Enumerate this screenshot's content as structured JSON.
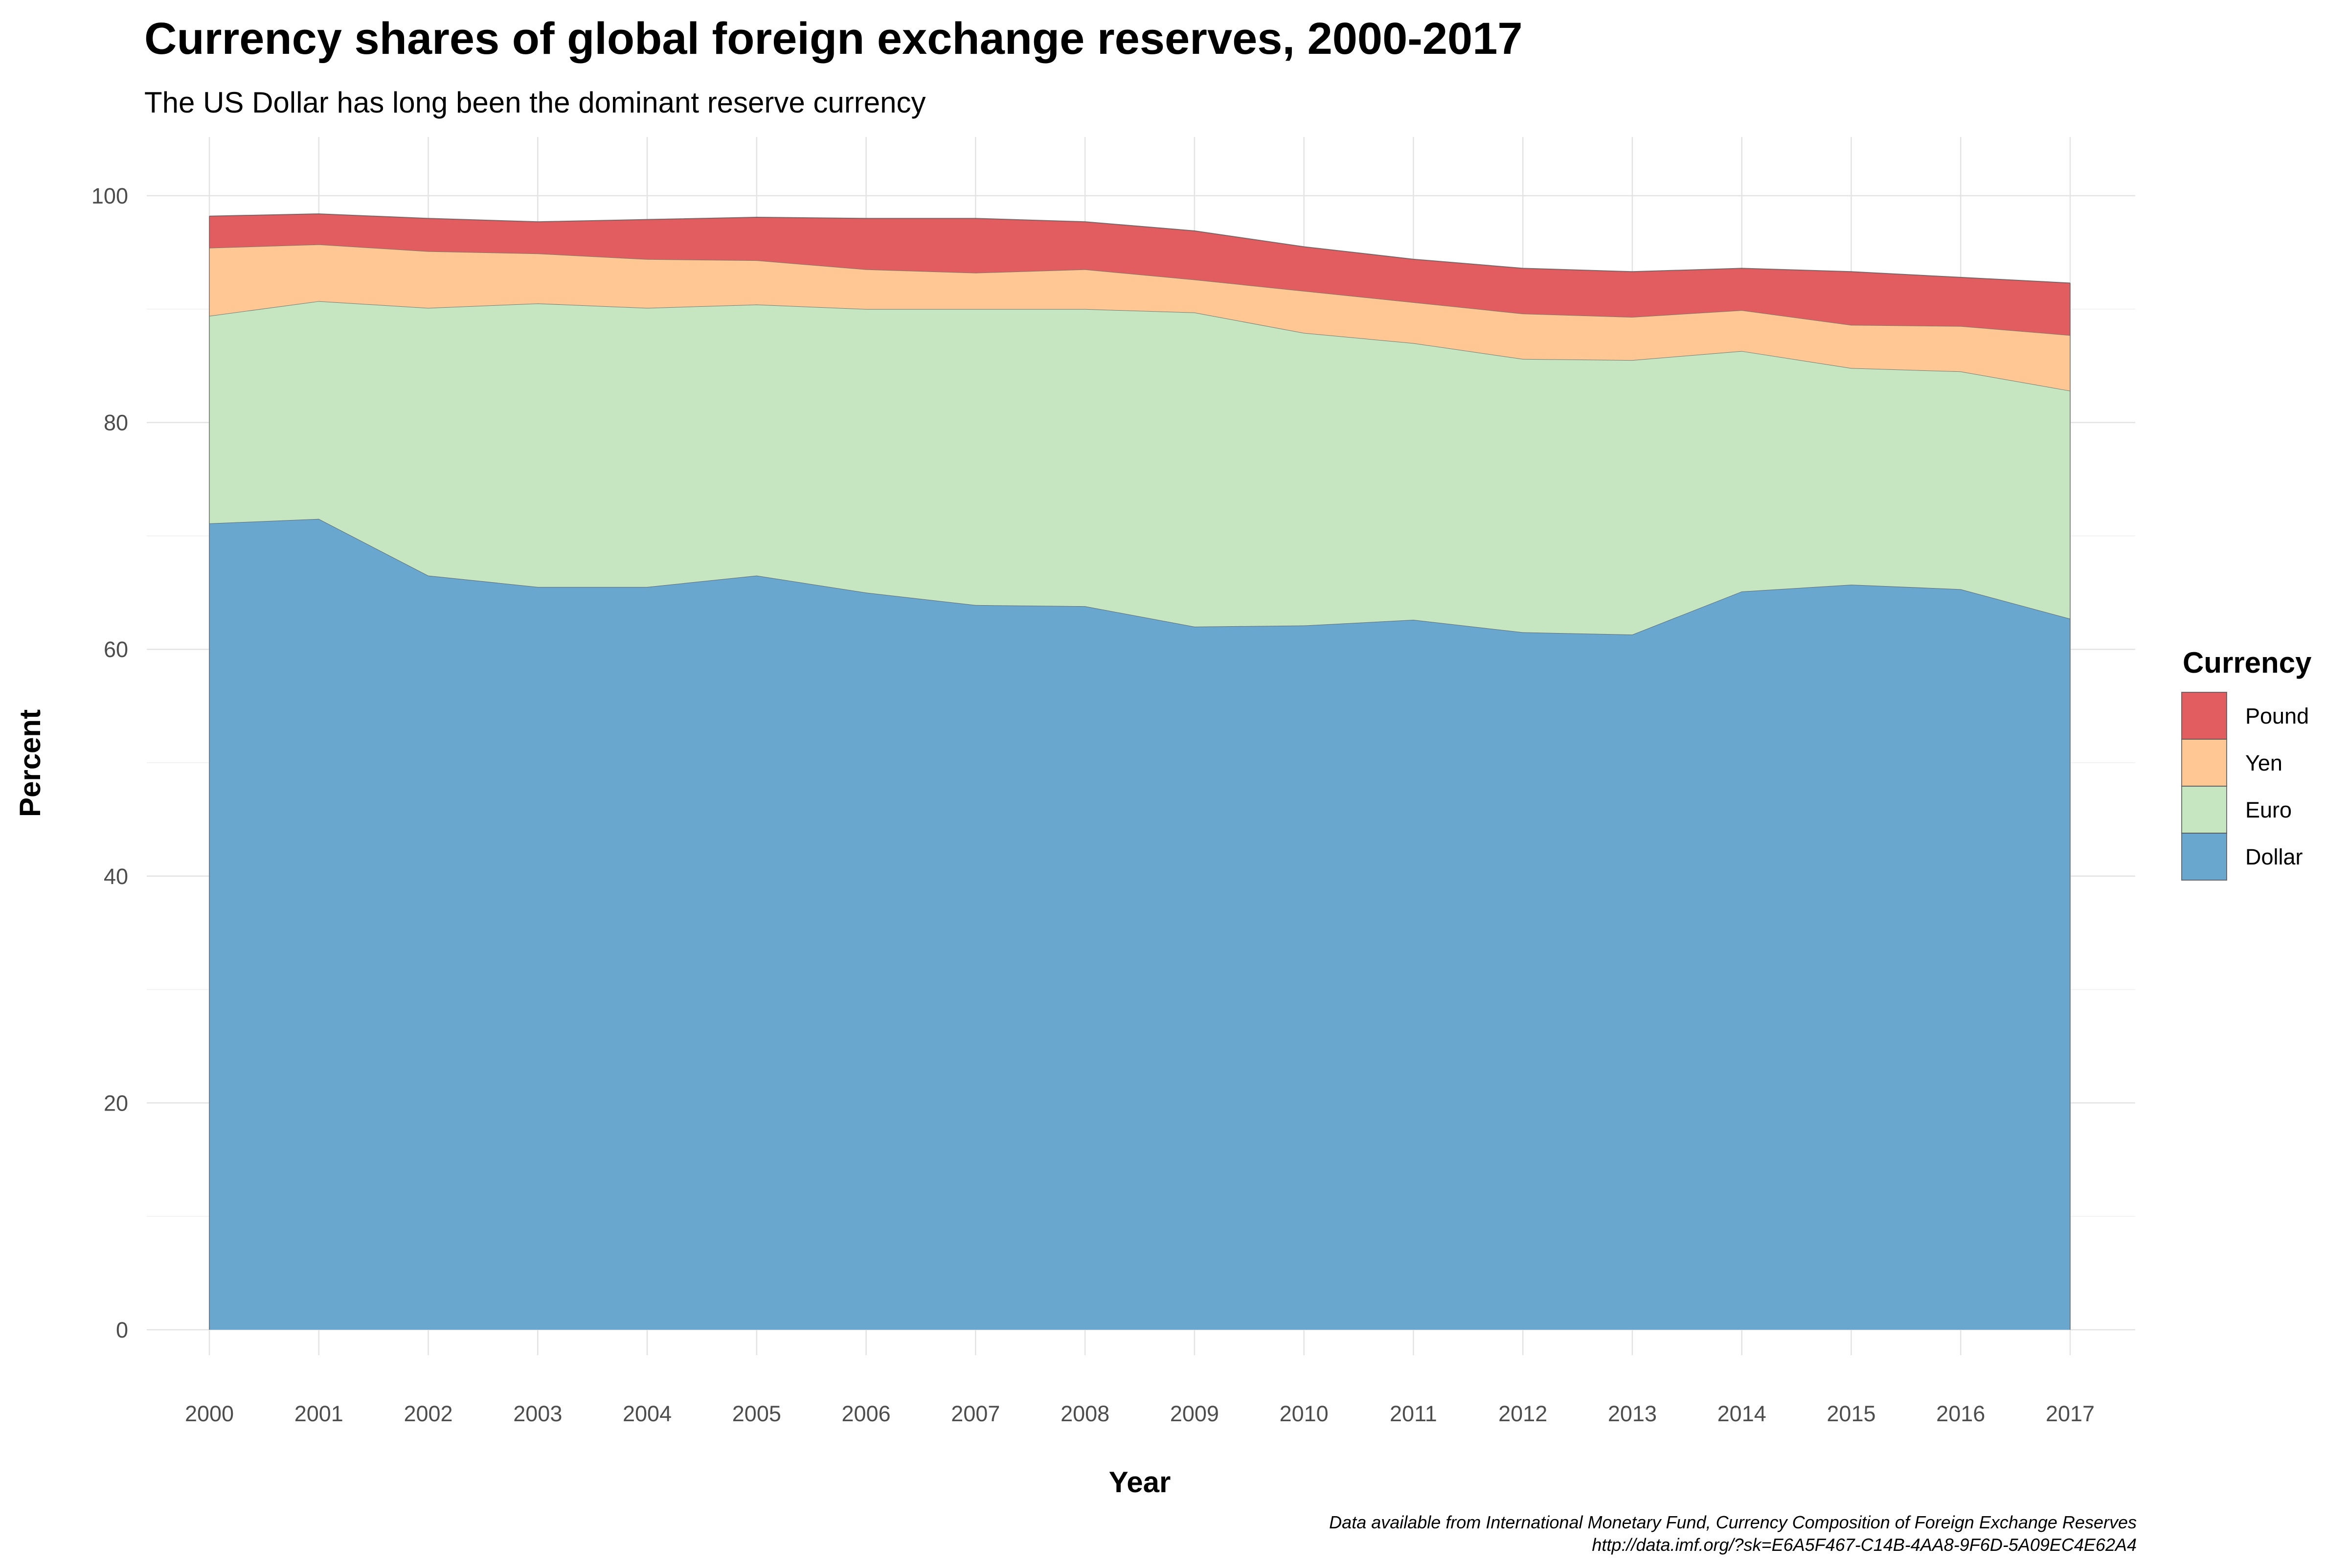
{
  "chart_data": {
    "type": "area",
    "stacked": true,
    "title": "Currency shares of global foreign exchange reserves, 2000-2017",
    "subtitle": "The US Dollar has long been the dominant reserve currency",
    "xlabel": "Year",
    "ylabel": "Percent",
    "caption_line1": "Data available from International Monetary Fund, Currency Composition of Foreign Exchange Reserves",
    "caption_line2": "http://data.imf.org/?sk=E6A5F467-C14B-4AA8-9F6D-5A09EC4E62A4",
    "x": [
      2000,
      2001,
      2002,
      2003,
      2004,
      2005,
      2006,
      2007,
      2008,
      2009,
      2010,
      2011,
      2012,
      2013,
      2014,
      2015,
      2016,
      2017
    ],
    "ylim": [
      0,
      100
    ],
    "yticks": [
      0,
      20,
      40,
      60,
      80,
      100
    ],
    "grid": true,
    "legend": {
      "title": "Currency",
      "placement": "right",
      "items": [
        "Pound",
        "Yen",
        "Euro",
        "Dollar"
      ]
    },
    "series": [
      {
        "name": "Dollar",
        "color": "#6aa7cf",
        "values": [
          71.1,
          71.5,
          66.5,
          65.5,
          65.5,
          66.5,
          65.0,
          63.9,
          63.8,
          62.0,
          62.1,
          62.6,
          61.5,
          61.3,
          65.1,
          65.7,
          65.3,
          62.7
        ]
      },
      {
        "name": "Euro",
        "color": "#c6e6c1",
        "values": [
          18.3,
          19.2,
          23.6,
          25.0,
          24.6,
          23.9,
          25.0,
          26.1,
          26.2,
          27.7,
          25.8,
          24.4,
          24.1,
          24.2,
          21.2,
          19.1,
          19.2,
          20.1
        ]
      },
      {
        "name": "Yen",
        "color": "#fec793",
        "values": [
          6.0,
          5.0,
          5.0,
          4.4,
          4.3,
          3.9,
          3.5,
          3.2,
          3.5,
          2.9,
          3.7,
          3.6,
          4.0,
          3.8,
          3.6,
          3.8,
          4.0,
          4.9
        ]
      },
      {
        "name": "Pound",
        "color": "#e15d60",
        "values": [
          2.8,
          2.7,
          2.9,
          2.8,
          3.5,
          3.8,
          4.5,
          4.8,
          4.2,
          4.3,
          3.9,
          3.8,
          4.0,
          4.0,
          3.7,
          4.7,
          4.3,
          4.6
        ]
      }
    ]
  }
}
